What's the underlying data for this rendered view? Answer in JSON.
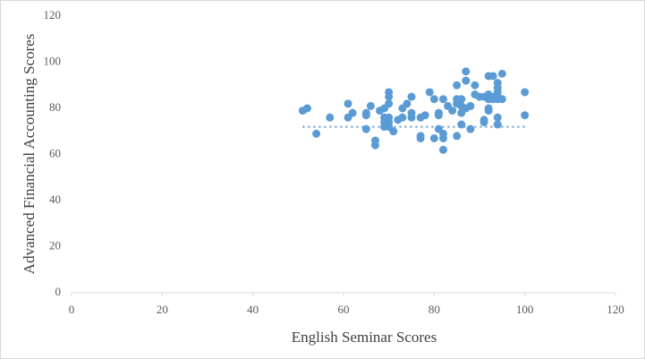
{
  "chart_data": {
    "type": "scatter",
    "x_label": "English Seminar Scores",
    "y_label": "Advanced Financial Accounting Scores",
    "xlim": [
      0,
      120
    ],
    "ylim": [
      0,
      120
    ],
    "xticks": [
      0,
      20,
      40,
      60,
      80,
      100,
      120
    ],
    "yticks": [
      0,
      20,
      40,
      60,
      80,
      100,
      120
    ],
    "grid": false,
    "color": "#5b9bd5",
    "x": [
      51,
      52,
      54,
      57,
      61,
      61,
      62,
      65,
      65,
      65,
      66,
      67,
      67,
      68,
      69,
      69,
      69,
      69,
      70,
      70,
      70,
      70,
      70,
      70,
      71,
      72,
      73,
      73,
      74,
      75,
      75,
      75,
      77,
      77,
      77,
      78,
      79,
      80,
      80,
      81,
      81,
      81,
      82,
      82,
      82,
      82,
      83,
      84,
      85,
      85,
      85,
      85,
      86,
      86,
      86,
      86,
      87,
      87,
      87,
      88,
      88,
      89,
      89,
      90,
      91,
      91,
      91,
      92,
      92,
      92,
      92,
      92,
      93,
      93,
      93,
      94,
      94,
      94,
      94,
      94,
      94,
      94,
      95,
      95,
      100,
      100
    ],
    "values": [
      79,
      80,
      69,
      76,
      76,
      82,
      78,
      78,
      77,
      71,
      81,
      66,
      64,
      79,
      80,
      76,
      74,
      72,
      87,
      85,
      82,
      76,
      74,
      72,
      70,
      75,
      76,
      80,
      82,
      85,
      78,
      76,
      76,
      68,
      67,
      77,
      87,
      84,
      67,
      78,
      77,
      71,
      84,
      69,
      67,
      62,
      81,
      79,
      90,
      84,
      82,
      68,
      84,
      81,
      78,
      73,
      96,
      92,
      80,
      81,
      71,
      90,
      86,
      85,
      85,
      75,
      74,
      94,
      86,
      84,
      80,
      79,
      94,
      85,
      84,
      91,
      89,
      87,
      85,
      84,
      76,
      73,
      95,
      84,
      87,
      77
    ],
    "trendline": {
      "x": [
        51,
        100
      ],
      "values": [
        72,
        72
      ]
    }
  }
}
